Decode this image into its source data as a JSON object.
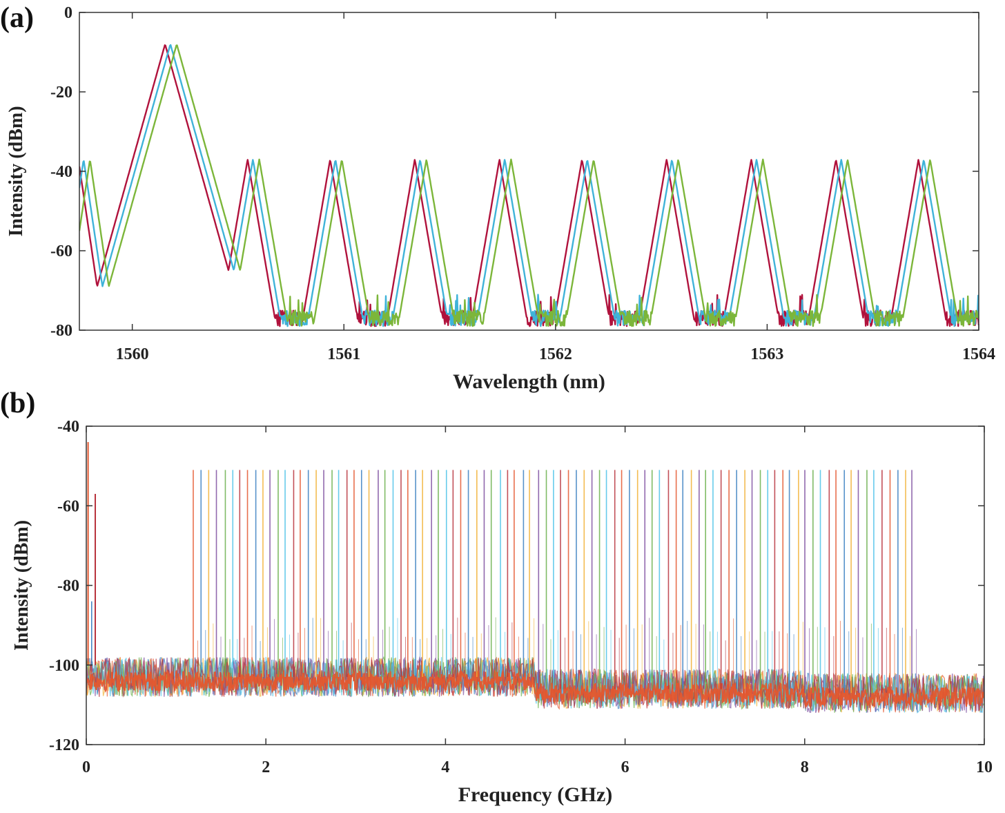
{
  "panels": {
    "a_label": "(a)",
    "b_label": "(b)"
  },
  "chart_data": [
    {
      "type": "line",
      "panel": "(a)",
      "xlabel": "Wavelength (nm)",
      "ylabel": "Intensity (dBm)",
      "xlim": [
        1559.75,
        1564.0
      ],
      "ylim": [
        -80,
        0
      ],
      "xticks": [
        1560,
        1561,
        1562,
        1563,
        1564
      ],
      "yticks": [
        0,
        -20,
        -40,
        -60,
        -80
      ],
      "grid": false,
      "legend": "none",
      "comb": {
        "pump_peak_wavelength": 1560.18,
        "pump_peak_dbm": -8,
        "line_wavelengths": [
          1560.57,
          1560.96,
          1561.36,
          1561.76,
          1562.15,
          1562.55,
          1562.95,
          1563.35,
          1563.74
        ],
        "line_peak_dbm": -37,
        "noise_floor_dbm": -77
      },
      "series": [
        {
          "color": "#b0123c",
          "offset_nm": -0.025
        },
        {
          "color": "#3fb3d9",
          "offset_nm": 0.0
        },
        {
          "color": "#7cb63a",
          "offset_nm": 0.03
        }
      ]
    },
    {
      "type": "line",
      "panel": "(b)",
      "xlabel": "Frequency (GHz)",
      "ylabel": "Intensity (dBm)",
      "xlim": [
        0,
        10
      ],
      "ylim": [
        -120,
        -40
      ],
      "xticks": [
        0,
        2,
        4,
        6,
        8,
        10
      ],
      "yticks": [
        -40,
        -60,
        -80,
        -100,
        -120
      ],
      "grid": false,
      "legend": "none",
      "spectrum": {
        "spike_start_ghz": 1.2,
        "spike_end_ghz": 9.2,
        "spike_count": 95,
        "spike_level_dbm": -51,
        "low_freq_peak_ghz": 0.1,
        "low_freq_peak_dbm": -57,
        "noise_floor_segments": [
          {
            "from": 0.0,
            "to": 5.0,
            "level": -103
          },
          {
            "from": 5.0,
            "to": 8.0,
            "level": -106
          },
          {
            "from": 8.0,
            "to": 10.0,
            "level": -107
          }
        ]
      },
      "colors": [
        "#e4572e",
        "#3a7fc1",
        "#f2b134",
        "#7e4fa0",
        "#6ab04c",
        "#4dc3e8",
        "#b8323c"
      ]
    }
  ]
}
